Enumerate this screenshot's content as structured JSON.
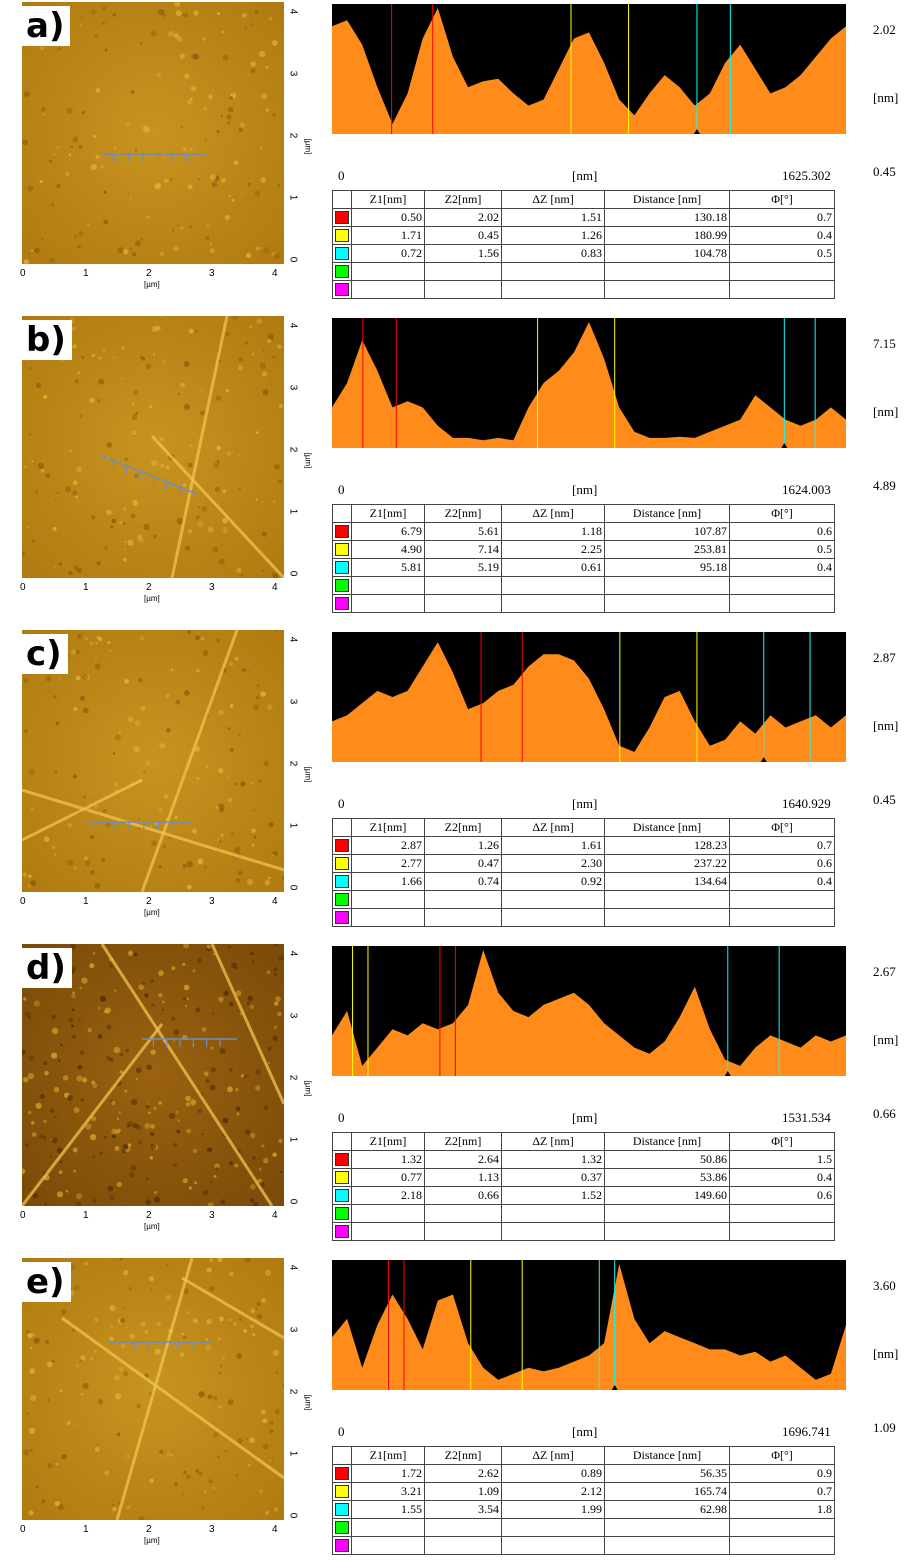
{
  "panels": [
    {
      "label": "a)",
      "ymax": "2.02",
      "ymin": "0.45",
      "unit": "[nm]",
      "xlabel": "[nm]",
      "xstart": "0",
      "xend": "1625.302",
      "rows": [
        [
          "0.50",
          "2.02",
          "1.51",
          "130.18",
          "0.7"
        ],
        [
          "1.71",
          "0.45",
          "1.26",
          "180.99",
          "0.4"
        ],
        [
          "0.72",
          "1.56",
          "0.83",
          "104.78",
          "0.5"
        ]
      ]
    },
    {
      "label": "b)",
      "ymax": "7.15",
      "ymin": "4.89",
      "unit": "[nm]",
      "xlabel": "[nm]",
      "xstart": "0",
      "xend": "1624.003",
      "rows": [
        [
          "6.79",
          "5.61",
          "1.18",
          "107.87",
          "0.6"
        ],
        [
          "4.90",
          "7.14",
          "2.25",
          "253.81",
          "0.5"
        ],
        [
          "5.81",
          "5.19",
          "0.61",
          "95.18",
          "0.4"
        ]
      ]
    },
    {
      "label": "c)",
      "ymax": "2.87",
      "ymin": "0.45",
      "unit": "[nm]",
      "xlabel": "[nm]",
      "xstart": "0",
      "xend": "1640.929",
      "rows": [
        [
          "2.87",
          "1.26",
          "1.61",
          "128.23",
          "0.7"
        ],
        [
          "2.77",
          "0.47",
          "2.30",
          "237.22",
          "0.6"
        ],
        [
          "1.66",
          "0.74",
          "0.92",
          "134.64",
          "0.4"
        ]
      ]
    },
    {
      "label": "d)",
      "ymax": "2.67",
      "ymin": "0.66",
      "unit": "[nm]",
      "xlabel": "[nm]",
      "xstart": "0",
      "xend": "1531.534",
      "rows": [
        [
          "1.32",
          "2.64",
          "1.32",
          "50.86",
          "1.5"
        ],
        [
          "0.77",
          "1.13",
          "0.37",
          "53.86",
          "0.4"
        ],
        [
          "2.18",
          "0.66",
          "1.52",
          "149.60",
          "0.6"
        ]
      ]
    },
    {
      "label": "e)",
      "ymax": "3.60",
      "ymin": "1.09",
      "unit": "[nm]",
      "xlabel": "[nm]",
      "xstart": "0",
      "xend": "1696.741",
      "rows": [
        [
          "1.72",
          "2.62",
          "0.89",
          "56.35",
          "0.9"
        ],
        [
          "3.21",
          "1.09",
          "2.12",
          "165.74",
          "0.7"
        ],
        [
          "1.55",
          "3.54",
          "1.99",
          "62.98",
          "1.8"
        ]
      ]
    }
  ],
  "table_headers": [
    "Z1[nm]",
    "Z2[nm]",
    "ΔZ [nm]",
    "Distance [nm]",
    "Φ[°]"
  ],
  "marker_colors": [
    "#ff0000",
    "#ffff00",
    "#00ffff",
    "#00ff00",
    "#ff00ff"
  ],
  "afm_axis": {
    "ticks": [
      "0",
      "1",
      "2",
      "3",
      "4"
    ],
    "unit": "[µm]"
  },
  "colors": {
    "profile_fill": "#ff8c1a",
    "profile_bg": "#000000",
    "afm_base": "#b07a10"
  }
}
